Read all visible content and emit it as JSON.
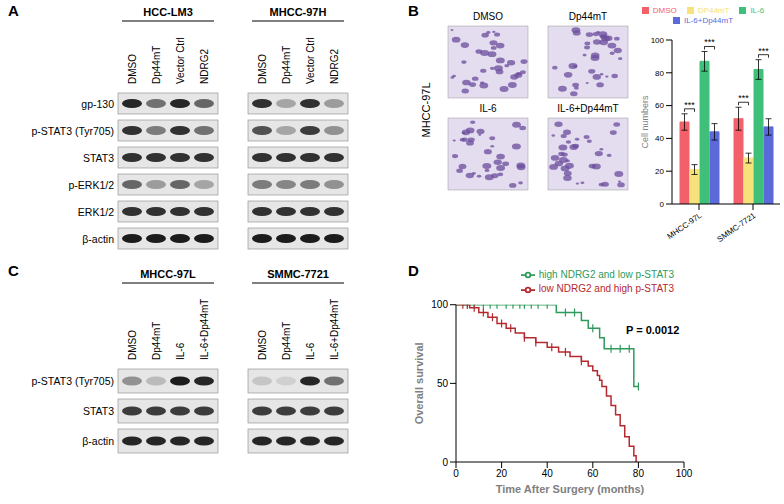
{
  "panel_labels": [
    "A",
    "B",
    "C",
    "D"
  ],
  "blot_a": {
    "groups": [
      {
        "name": "HCC-LM3",
        "lanes": [
          "DMSO",
          "Dp44mT",
          "Vector Ctrl",
          "NDRG2"
        ]
      },
      {
        "name": "MHCC-97H",
        "lanes": [
          "DMSO",
          "Dp44mT",
          "Vector Ctrl",
          "NDRG2"
        ]
      }
    ],
    "rows": [
      {
        "label": "gp-130",
        "intensity": [
          0.9,
          0.55,
          0.9,
          0.6,
          0.85,
          0.3,
          0.85,
          0.35
        ]
      },
      {
        "label": "p-STAT3 (Tyr705)",
        "intensity": [
          0.85,
          0.5,
          0.85,
          0.55,
          0.7,
          0.3,
          0.8,
          0.4
        ]
      },
      {
        "label": "STAT3",
        "intensity": [
          0.85,
          0.85,
          0.85,
          0.85,
          0.85,
          0.85,
          0.85,
          0.85
        ]
      },
      {
        "label": "p-ERK1/2",
        "intensity": [
          0.6,
          0.35,
          0.6,
          0.3,
          0.5,
          0.45,
          0.5,
          0.4
        ]
      },
      {
        "label": "ERK1/2",
        "intensity": [
          0.85,
          0.85,
          0.85,
          0.85,
          0.85,
          0.85,
          0.85,
          0.85
        ]
      },
      {
        "label": "β-actin",
        "intensity": [
          0.95,
          0.95,
          0.95,
          0.95,
          0.95,
          0.95,
          0.95,
          0.95
        ]
      }
    ]
  },
  "micrographs": {
    "cell_line": "MHCC-97L",
    "labels": [
      "DMSO",
      "Dp44mT",
      "IL-6",
      "IL-6+Dp44mT"
    ]
  },
  "blot_c": {
    "groups": [
      {
        "name": "MHCC-97L",
        "lanes": [
          "DMSO",
          "Dp44mT",
          "IL-6",
          "IL-6+Dp44mT"
        ]
      },
      {
        "name": "SMMC-7721",
        "lanes": [
          "DMSO",
          "Dp44mT",
          "IL-6",
          "IL-6+Dp44mT"
        ]
      }
    ],
    "rows": [
      {
        "label": "p-STAT3 (Tyr705)",
        "intensity": [
          0.4,
          0.2,
          0.95,
          0.9,
          0.15,
          0.1,
          0.9,
          0.55
        ]
      },
      {
        "label": "STAT3",
        "intensity": [
          0.8,
          0.8,
          0.8,
          0.8,
          0.8,
          0.8,
          0.8,
          0.8
        ]
      },
      {
        "label": "β-actin",
        "intensity": [
          0.9,
          0.9,
          0.9,
          0.9,
          0.9,
          0.9,
          0.9,
          0.9
        ]
      }
    ]
  },
  "chart_data": [
    {
      "type": "bar",
      "categories": [
        "MHCC-97L",
        "SMMC-7721"
      ],
      "y_label": "Cell numbers",
      "ylim": [
        0,
        100
      ],
      "yticks": [
        0,
        20,
        40,
        60,
        80,
        100
      ],
      "legend": "top",
      "series": [
        {
          "name": "DMSO",
          "color": "#f2606a",
          "values": [
            50,
            52
          ],
          "error": [
            5,
            7
          ]
        },
        {
          "name": "DP44mT",
          "color": "#f5e27a",
          "values": [
            21,
            28
          ],
          "error": [
            3,
            3
          ]
        },
        {
          "name": "IL-6",
          "color": "#3fc07a",
          "values": [
            87,
            82
          ],
          "error": [
            6,
            6
          ]
        },
        {
          "name": "IL-6+Dp44mT",
          "color": "#5b6ad8",
          "values": [
            44,
            47
          ],
          "error": [
            5,
            5
          ]
        }
      ],
      "annotations": [
        {
          "text": "***",
          "category": "MHCC-97L",
          "between": [
            "DMSO",
            "DP44mT"
          ]
        },
        {
          "text": "***",
          "category": "MHCC-97L",
          "between": [
            "IL-6",
            "IL-6+Dp44mT"
          ]
        },
        {
          "text": "***",
          "category": "SMMC-7721",
          "between": [
            "DMSO",
            "DP44mT"
          ]
        },
        {
          "text": "***",
          "category": "SMMC-7721",
          "between": [
            "IL-6",
            "IL-6+Dp44mT"
          ]
        }
      ]
    },
    {
      "type": "line",
      "x_label": "Time After Surgery (months)",
      "y_label": "Overall survival",
      "xlim": [
        0,
        100
      ],
      "xticks": [
        0,
        20,
        40,
        60,
        80,
        100
      ],
      "ylim": [
        0,
        100
      ],
      "yticks": [
        0,
        50,
        100
      ],
      "line_style": "step",
      "marker": "censor",
      "legend": "top right",
      "annotations": [
        {
          "text": "P = 0.0012"
        }
      ],
      "series": [
        {
          "name": "high NDRG2 and low p-STAT3",
          "color": "#2e9a5c",
          "x": [
            0,
            44,
            55,
            58,
            63,
            65,
            78,
            80
          ],
          "values": [
            100,
            95,
            90,
            85,
            79,
            72,
            48,
            48
          ],
          "censored": {
            "x": [
              5,
              8,
              12,
              15,
              18,
              22,
              25,
              28,
              30,
              33,
              36,
              40,
              48,
              52,
              60,
              68,
              72,
              76,
              80
            ],
            "values": [
              100,
              100,
              100,
              100,
              100,
              100,
              100,
              100,
              100,
              100,
              100,
              100,
              95,
              95,
              85,
              72,
              72,
              72,
              48
            ]
          }
        },
        {
          "name": "low NDRG2 and high p-STAT3",
          "color": "#b5282e",
          "x": [
            0,
            6,
            10,
            14,
            18,
            22,
            26,
            30,
            35,
            40,
            45,
            50,
            55,
            58,
            60,
            62,
            63,
            64,
            66,
            68,
            70,
            72,
            74,
            76,
            78,
            79
          ],
          "values": [
            100,
            98,
            95,
            92,
            88,
            85,
            82,
            79,
            76,
            73,
            70,
            67,
            64,
            61,
            58,
            55,
            52,
            48,
            42,
            36,
            30,
            23,
            16,
            10,
            4,
            0
          ],
          "censored": {
            "x": [
              3,
              5,
              8,
              12,
              16,
              20,
              24,
              30,
              35,
              42,
              48,
              55
            ],
            "values": [
              100,
              100,
              98,
              95,
              92,
              88,
              85,
              79,
              76,
              73,
              70,
              64
            ]
          }
        }
      ]
    }
  ]
}
